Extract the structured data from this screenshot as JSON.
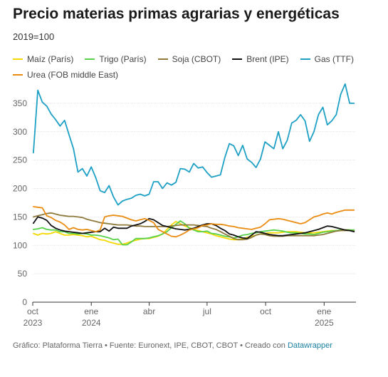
{
  "title": "Precio materias primas agrarias y energéticas",
  "subtitle": "2019=100",
  "footer": {
    "text": "Gráfico: Plataforma Tierra • Fuente: Euronext, IPE, CBOT, CBOT • Creado con ",
    "link": "Datawrapper"
  },
  "chart_data": {
    "type": "line",
    "title": "Precio materias primas agrarias y energéticas",
    "subtitle": "2019=100",
    "xlabel": "",
    "ylabel": "",
    "ylim": [
      0,
      380
    ],
    "yticks": [
      0,
      50,
      100,
      150,
      200,
      250,
      300,
      350
    ],
    "grid": true,
    "legend_position": "top",
    "x": [
      "2023-10-02",
      "2023-10-09",
      "2023-10-16",
      "2023-10-23",
      "2023-10-30",
      "2023-11-06",
      "2023-11-13",
      "2023-11-20",
      "2023-11-27",
      "2023-12-04",
      "2023-12-11",
      "2023-12-18",
      "2023-12-25",
      "2024-01-01",
      "2024-01-08",
      "2024-01-15",
      "2024-01-22",
      "2024-01-29",
      "2024-02-05",
      "2024-02-12",
      "2024-02-19",
      "2024-02-26",
      "2024-03-04",
      "2024-03-11",
      "2024-03-18",
      "2024-03-25",
      "2024-04-01",
      "2024-04-08",
      "2024-04-15",
      "2024-04-22",
      "2024-04-29",
      "2024-05-06",
      "2024-05-13",
      "2024-05-20",
      "2024-05-27",
      "2024-06-03",
      "2024-06-10",
      "2024-06-17",
      "2024-06-24",
      "2024-07-01",
      "2024-07-08",
      "2024-07-15",
      "2024-07-22",
      "2024-07-29",
      "2024-08-05",
      "2024-08-12",
      "2024-08-19",
      "2024-08-26",
      "2024-09-02",
      "2024-09-09",
      "2024-09-16",
      "2024-09-23",
      "2024-09-30",
      "2024-10-07",
      "2024-10-14",
      "2024-10-21",
      "2024-10-28",
      "2024-11-04",
      "2024-11-11",
      "2024-11-18",
      "2024-11-25",
      "2024-12-02",
      "2024-12-09",
      "2024-12-16",
      "2024-12-23",
      "2024-12-30",
      "2025-01-06",
      "2025-01-13",
      "2025-01-20",
      "2025-01-27",
      "2025-02-03",
      "2025-02-10",
      "2025-02-17"
    ],
    "x_ticks": [
      {
        "value": "2023-10-01",
        "label": "oct",
        "sublabel": "2023"
      },
      {
        "value": "2024-01-01",
        "label": "ene",
        "sublabel": "2024"
      },
      {
        "value": "2024-04-01",
        "label": "abr",
        "sublabel": ""
      },
      {
        "value": "2024-07-01",
        "label": "jul",
        "sublabel": ""
      },
      {
        "value": "2024-10-01",
        "label": "oct",
        "sublabel": ""
      },
      {
        "value": "2025-01-01",
        "label": "ene",
        "sublabel": "2025"
      }
    ],
    "series": [
      {
        "name": "Maíz (París)",
        "color": "#f5d800",
        "values": [
          121,
          118,
          121,
          120,
          121,
          124,
          121,
          118,
          118,
          119,
          118,
          117,
          115,
          116,
          113,
          110,
          109,
          106,
          104,
          102,
          102,
          104,
          107,
          109,
          111,
          112,
          112,
          114,
          116,
          120,
          128,
          136,
          142,
          138,
          134,
          131,
          128,
          126,
          124,
          122,
          120,
          117,
          115,
          113,
          111,
          110,
          110,
          112,
          114,
          116,
          118,
          120,
          121,
          122,
          122,
          122,
          123,
          124,
          124,
          124,
          123,
          122,
          122,
          122,
          123,
          124,
          125,
          126,
          126,
          126,
          127,
          127,
          126
        ]
      },
      {
        "name": "Trigo (París)",
        "color": "#57d14a",
        "values": [
          128,
          129,
          131,
          128,
          127,
          127,
          124,
          124,
          121,
          121,
          120,
          121,
          120,
          118,
          118,
          117,
          115,
          113,
          110,
          111,
          101,
          101,
          106,
          112,
          112,
          112,
          113,
          115,
          117,
          120,
          124,
          131,
          137,
          143,
          138,
          130,
          127,
          124,
          124,
          125,
          121,
          120,
          118,
          116,
          115,
          113,
          115,
          118,
          119,
          121,
          122,
          124,
          125,
          126,
          127,
          126,
          125,
          123,
          122,
          122,
          121,
          120,
          120,
          119,
          121,
          123,
          124,
          125,
          126,
          127,
          127,
          127,
          127
        ]
      },
      {
        "name": "Soja (CBOT)",
        "color": "#8f7a3c",
        "values": [
          150,
          152,
          154,
          156,
          157,
          155,
          153,
          152,
          151,
          151,
          150,
          149,
          146,
          144,
          142,
          140,
          139,
          138,
          137,
          136,
          136,
          136,
          135,
          134,
          134,
          133,
          133,
          133,
          133,
          133,
          133,
          134,
          135,
          136,
          136,
          136,
          136,
          135,
          134,
          133,
          130,
          128,
          124,
          120,
          116,
          112,
          110,
          110,
          111,
          114,
          118,
          120,
          119,
          117,
          116,
          116,
          116,
          117,
          117,
          117,
          117,
          117,
          117,
          117,
          118,
          119,
          121,
          123,
          125,
          126,
          126,
          126,
          125
        ]
      },
      {
        "name": "Brent (IPE)",
        "color": "#111111",
        "values": [
          139,
          150,
          148,
          144,
          135,
          130,
          127,
          125,
          124,
          123,
          122,
          121,
          122,
          123,
          124,
          124,
          130,
          125,
          132,
          130,
          130,
          130,
          134,
          136,
          138,
          142,
          147,
          145,
          140,
          135,
          133,
          131,
          129,
          128,
          127,
          128,
          130,
          133,
          136,
          138,
          138,
          135,
          130,
          126,
          120,
          118,
          115,
          113,
          112,
          118,
          124,
          123,
          121,
          119,
          118,
          117,
          117,
          118,
          119,
          120,
          121,
          122,
          124,
          126,
          128,
          131,
          134,
          133,
          131,
          129,
          127,
          126,
          124
        ]
      },
      {
        "name": "Gas (TTF)",
        "color": "#1ea0c5",
        "values": [
          263,
          373,
          352,
          345,
          331,
          321,
          310,
          320,
          295,
          270,
          229,
          235,
          222,
          238,
          219,
          196,
          193,
          205,
          185,
          171,
          178,
          181,
          183,
          188,
          190,
          187,
          190,
          212,
          212,
          200,
          210,
          206,
          211,
          235,
          234,
          229,
          244,
          236,
          238,
          228,
          220,
          222,
          224,
          255,
          279,
          275,
          258,
          276,
          252,
          246,
          237,
          252,
          282,
          276,
          270,
          300,
          270,
          285,
          315,
          320,
          330,
          319,
          283,
          300,
          330,
          343,
          312,
          319,
          330,
          366,
          384,
          350,
          350
        ]
      },
      {
        "name": "Urea (FOB middle East)",
        "color": "#ea8c11",
        "values": [
          168,
          167,
          166,
          152,
          149,
          144,
          141,
          136,
          128,
          131,
          128,
          127,
          128,
          126,
          124,
          127,
          150,
          152,
          153,
          152,
          151,
          148,
          145,
          143,
          145,
          147,
          144,
          140,
          128,
          124,
          120,
          116,
          115,
          118,
          122,
          127,
          129,
          131,
          135,
          136,
          138,
          137,
          137,
          136,
          134,
          133,
          131,
          130,
          129,
          128,
          130,
          132,
          138,
          145,
          146,
          147,
          146,
          144,
          142,
          140,
          138,
          140,
          145,
          150,
          152,
          155,
          157,
          155,
          158,
          160,
          162,
          162,
          162
        ]
      }
    ]
  }
}
